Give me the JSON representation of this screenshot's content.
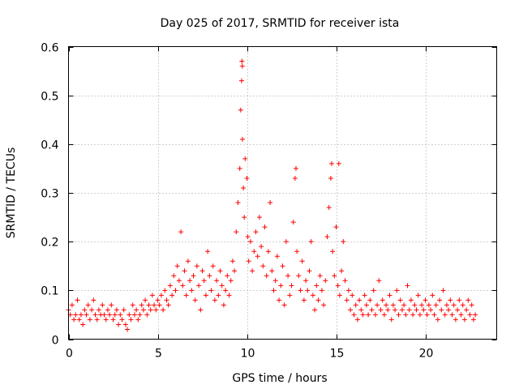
{
  "chart_data": {
    "type": "scatter",
    "title": "Day 025 of 2017, SRMTID for receiver ista",
    "xlabel": "GPS time / hours",
    "ylabel": "SRMTID / TECUs",
    "xlim": [
      0,
      24
    ],
    "ylim": [
      0,
      0.6
    ],
    "xticks": [
      0,
      5,
      10,
      15,
      20
    ],
    "xtick_labels": [
      "0",
      "5",
      "10",
      "15",
      "20"
    ],
    "yticks": [
      0,
      0.1,
      0.2,
      0.3,
      0.4,
      0.5,
      0.6
    ],
    "ytick_labels": [
      "0",
      "0.1",
      "0.2",
      "0.3",
      "0.4",
      "0.5",
      "0.6"
    ],
    "grid": true,
    "marker": "+",
    "color": "#ff0000",
    "series": [
      {
        "name": "SRMTID",
        "points": [
          [
            0.0,
            0.06
          ],
          [
            0.1,
            0.05
          ],
          [
            0.2,
            0.07
          ],
          [
            0.3,
            0.04
          ],
          [
            0.4,
            0.05
          ],
          [
            0.5,
            0.08
          ],
          [
            0.6,
            0.04
          ],
          [
            0.7,
            0.05
          ],
          [
            0.8,
            0.03
          ],
          [
            0.9,
            0.06
          ],
          [
            1.0,
            0.05
          ],
          [
            1.1,
            0.07
          ],
          [
            1.2,
            0.04
          ],
          [
            1.3,
            0.06
          ],
          [
            1.4,
            0.08
          ],
          [
            1.5,
            0.05
          ],
          [
            1.6,
            0.04
          ],
          [
            1.7,
            0.06
          ],
          [
            1.8,
            0.05
          ],
          [
            1.9,
            0.07
          ],
          [
            2.0,
            0.05
          ],
          [
            2.1,
            0.04
          ],
          [
            2.2,
            0.06
          ],
          [
            2.3,
            0.05
          ],
          [
            2.4,
            0.07
          ],
          [
            2.5,
            0.04
          ],
          [
            2.6,
            0.05
          ],
          [
            2.7,
            0.06
          ],
          [
            2.8,
            0.03
          ],
          [
            2.9,
            0.05
          ],
          [
            3.0,
            0.04
          ],
          [
            3.1,
            0.06
          ],
          [
            3.2,
            0.03
          ],
          [
            3.3,
            0.02
          ],
          [
            3.4,
            0.05
          ],
          [
            3.5,
            0.04
          ],
          [
            3.6,
            0.07
          ],
          [
            3.7,
            0.05
          ],
          [
            3.8,
            0.06
          ],
          [
            3.9,
            0.04
          ],
          [
            4.0,
            0.05
          ],
          [
            4.1,
            0.07
          ],
          [
            4.2,
            0.06
          ],
          [
            4.3,
            0.08
          ],
          [
            4.4,
            0.05
          ],
          [
            4.5,
            0.07
          ],
          [
            4.6,
            0.06
          ],
          [
            4.7,
            0.09
          ],
          [
            4.8,
            0.07
          ],
          [
            4.9,
            0.06
          ],
          [
            5.0,
            0.08
          ],
          [
            5.1,
            0.07
          ],
          [
            5.2,
            0.09
          ],
          [
            5.3,
            0.06
          ],
          [
            5.4,
            0.1
          ],
          [
            5.5,
            0.08
          ],
          [
            5.6,
            0.07
          ],
          [
            5.7,
            0.11
          ],
          [
            5.8,
            0.09
          ],
          [
            5.9,
            0.13
          ],
          [
            6.0,
            0.1
          ],
          [
            6.1,
            0.15
          ],
          [
            6.2,
            0.12
          ],
          [
            6.3,
            0.22
          ],
          [
            6.4,
            0.11
          ],
          [
            6.5,
            0.14
          ],
          [
            6.6,
            0.09
          ],
          [
            6.7,
            0.16
          ],
          [
            6.8,
            0.12
          ],
          [
            6.9,
            0.1
          ],
          [
            7.0,
            0.13
          ],
          [
            7.1,
            0.08
          ],
          [
            7.2,
            0.15
          ],
          [
            7.3,
            0.11
          ],
          [
            7.4,
            0.06
          ],
          [
            7.5,
            0.14
          ],
          [
            7.6,
            0.12
          ],
          [
            7.7,
            0.09
          ],
          [
            7.8,
            0.18
          ],
          [
            7.9,
            0.13
          ],
          [
            8.0,
            0.1
          ],
          [
            8.1,
            0.15
          ],
          [
            8.2,
            0.08
          ],
          [
            8.3,
            0.12
          ],
          [
            8.4,
            0.09
          ],
          [
            8.5,
            0.14
          ],
          [
            8.6,
            0.11
          ],
          [
            8.7,
            0.07
          ],
          [
            8.8,
            0.1
          ],
          [
            8.9,
            0.13
          ],
          [
            9.0,
            0.09
          ],
          [
            9.1,
            0.12
          ],
          [
            9.2,
            0.16
          ],
          [
            9.3,
            0.14
          ],
          [
            9.4,
            0.22
          ],
          [
            9.5,
            0.28
          ],
          [
            9.6,
            0.35
          ],
          [
            9.65,
            0.47
          ],
          [
            9.7,
            0.53
          ],
          [
            9.72,
            0.57
          ],
          [
            9.74,
            0.56
          ],
          [
            9.75,
            0.41
          ],
          [
            9.8,
            0.31
          ],
          [
            9.85,
            0.25
          ],
          [
            9.9,
            0.37
          ],
          [
            10.0,
            0.33
          ],
          [
            10.05,
            0.21
          ],
          [
            10.1,
            0.16
          ],
          [
            10.2,
            0.2
          ],
          [
            10.3,
            0.14
          ],
          [
            10.4,
            0.18
          ],
          [
            10.5,
            0.22
          ],
          [
            10.6,
            0.17
          ],
          [
            10.7,
            0.25
          ],
          [
            10.8,
            0.19
          ],
          [
            10.9,
            0.15
          ],
          [
            11.0,
            0.23
          ],
          [
            11.1,
            0.13
          ],
          [
            11.2,
            0.18
          ],
          [
            11.3,
            0.28
          ],
          [
            11.4,
            0.14
          ],
          [
            11.5,
            0.1
          ],
          [
            11.6,
            0.12
          ],
          [
            11.7,
            0.17
          ],
          [
            11.8,
            0.08
          ],
          [
            11.9,
            0.11
          ],
          [
            12.0,
            0.15
          ],
          [
            12.1,
            0.07
          ],
          [
            12.2,
            0.2
          ],
          [
            12.3,
            0.13
          ],
          [
            12.4,
            0.09
          ],
          [
            12.5,
            0.11
          ],
          [
            12.6,
            0.24
          ],
          [
            12.7,
            0.33
          ],
          [
            12.75,
            0.35
          ],
          [
            12.8,
            0.18
          ],
          [
            12.9,
            0.13
          ],
          [
            13.0,
            0.1
          ],
          [
            13.1,
            0.16
          ],
          [
            13.2,
            0.08
          ],
          [
            13.3,
            0.12
          ],
          [
            13.4,
            0.1
          ],
          [
            13.5,
            0.14
          ],
          [
            13.6,
            0.2
          ],
          [
            13.7,
            0.09
          ],
          [
            13.8,
            0.06
          ],
          [
            13.9,
            0.11
          ],
          [
            14.0,
            0.08
          ],
          [
            14.1,
            0.13
          ],
          [
            14.2,
            0.1
          ],
          [
            14.3,
            0.07
          ],
          [
            14.4,
            0.12
          ],
          [
            14.5,
            0.21
          ],
          [
            14.6,
            0.27
          ],
          [
            14.7,
            0.33
          ],
          [
            14.75,
            0.36
          ],
          [
            14.8,
            0.18
          ],
          [
            14.9,
            0.13
          ],
          [
            15.0,
            0.23
          ],
          [
            15.1,
            0.11
          ],
          [
            15.15,
            0.36
          ],
          [
            15.2,
            0.09
          ],
          [
            15.3,
            0.14
          ],
          [
            15.4,
            0.2
          ],
          [
            15.5,
            0.12
          ],
          [
            15.6,
            0.08
          ],
          [
            15.7,
            0.1
          ],
          [
            15.8,
            0.06
          ],
          [
            15.9,
            0.09
          ],
          [
            16.0,
            0.05
          ],
          [
            16.1,
            0.07
          ],
          [
            16.2,
            0.04
          ],
          [
            16.3,
            0.08
          ],
          [
            16.4,
            0.06
          ],
          [
            16.5,
            0.05
          ],
          [
            16.6,
            0.09
          ],
          [
            16.7,
            0.07
          ],
          [
            16.8,
            0.05
          ],
          [
            16.9,
            0.08
          ],
          [
            17.0,
            0.06
          ],
          [
            17.1,
            0.1
          ],
          [
            17.2,
            0.05
          ],
          [
            17.3,
            0.07
          ],
          [
            17.4,
            0.12
          ],
          [
            17.5,
            0.06
          ],
          [
            17.6,
            0.08
          ],
          [
            17.7,
            0.05
          ],
          [
            17.8,
            0.07
          ],
          [
            17.9,
            0.06
          ],
          [
            18.0,
            0.09
          ],
          [
            18.1,
            0.04
          ],
          [
            18.2,
            0.07
          ],
          [
            18.3,
            0.06
          ],
          [
            18.4,
            0.1
          ],
          [
            18.5,
            0.05
          ],
          [
            18.6,
            0.08
          ],
          [
            18.7,
            0.06
          ],
          [
            18.8,
            0.07
          ],
          [
            18.9,
            0.05
          ],
          [
            19.0,
            0.11
          ],
          [
            19.1,
            0.06
          ],
          [
            19.2,
            0.08
          ],
          [
            19.3,
            0.05
          ],
          [
            19.4,
            0.07
          ],
          [
            19.5,
            0.06
          ],
          [
            19.6,
            0.09
          ],
          [
            19.7,
            0.05
          ],
          [
            19.8,
            0.07
          ],
          [
            19.9,
            0.06
          ],
          [
            20.0,
            0.08
          ],
          [
            20.1,
            0.05
          ],
          [
            20.2,
            0.07
          ],
          [
            20.3,
            0.06
          ],
          [
            20.4,
            0.09
          ],
          [
            20.5,
            0.05
          ],
          [
            20.6,
            0.07
          ],
          [
            20.7,
            0.04
          ],
          [
            20.8,
            0.08
          ],
          [
            20.9,
            0.06
          ],
          [
            21.0,
            0.1
          ],
          [
            21.1,
            0.05
          ],
          [
            21.2,
            0.07
          ],
          [
            21.3,
            0.06
          ],
          [
            21.4,
            0.08
          ],
          [
            21.5,
            0.05
          ],
          [
            21.6,
            0.07
          ],
          [
            21.7,
            0.04
          ],
          [
            21.8,
            0.06
          ],
          [
            21.9,
            0.08
          ],
          [
            22.0,
            0.05
          ],
          [
            22.1,
            0.07
          ],
          [
            22.2,
            0.04
          ],
          [
            22.3,
            0.06
          ],
          [
            22.4,
            0.08
          ],
          [
            22.5,
            0.05
          ],
          [
            22.6,
            0.07
          ],
          [
            22.7,
            0.04
          ],
          [
            22.8,
            0.05
          ]
        ]
      }
    ]
  }
}
